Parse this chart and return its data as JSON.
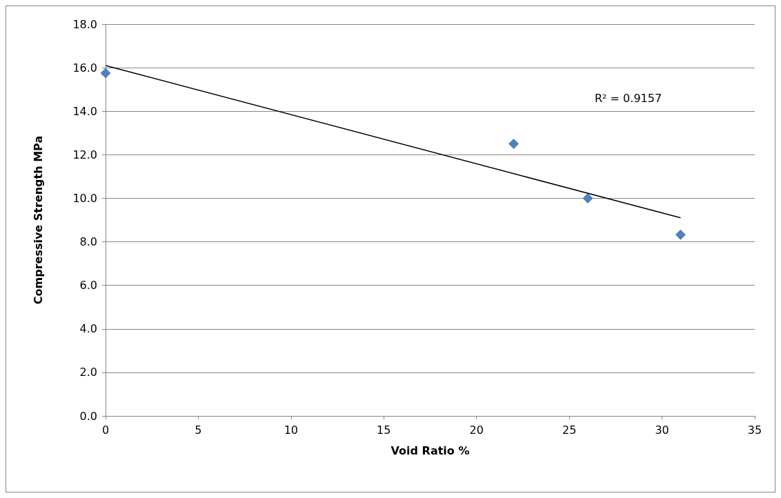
{
  "chart_data": {
    "type": "scatter",
    "xlabel": "Void Ratio %",
    "ylabel": "Compressive Strength MPa",
    "annotations": [
      "R² = 0.9157"
    ],
    "series": [
      {
        "type": "scatter",
        "color": "#4f81bd",
        "x": [
          0,
          22,
          26,
          31
        ],
        "values": [
          15.75,
          12.5,
          10.0,
          8.33
        ],
        "marker": "diamond"
      },
      {
        "type": "line",
        "color": "#000000",
        "x": [
          0,
          31
        ],
        "values": [
          16.1,
          9.1
        ],
        "marker": "none"
      }
    ],
    "xlim": [
      0,
      35
    ],
    "xticks": [
      0,
      5,
      10,
      15,
      20,
      25,
      30,
      35
    ],
    "ylim": [
      0,
      18
    ],
    "yticks": [
      {
        "value": 0,
        "label": "0.0"
      },
      {
        "value": 2,
        "label": "2.0"
      },
      {
        "value": 4,
        "label": "4.0"
      },
      {
        "value": 6,
        "label": "6.0"
      },
      {
        "value": 8,
        "label": "8.0"
      },
      {
        "value": 10,
        "label": "10.0"
      },
      {
        "value": 12,
        "label": "12.0"
      },
      {
        "value": 14,
        "label": "14.0"
      },
      {
        "value": 16,
        "label": "16.0"
      },
      {
        "value": 18,
        "label": "18.0"
      }
    ],
    "grid": "y"
  }
}
